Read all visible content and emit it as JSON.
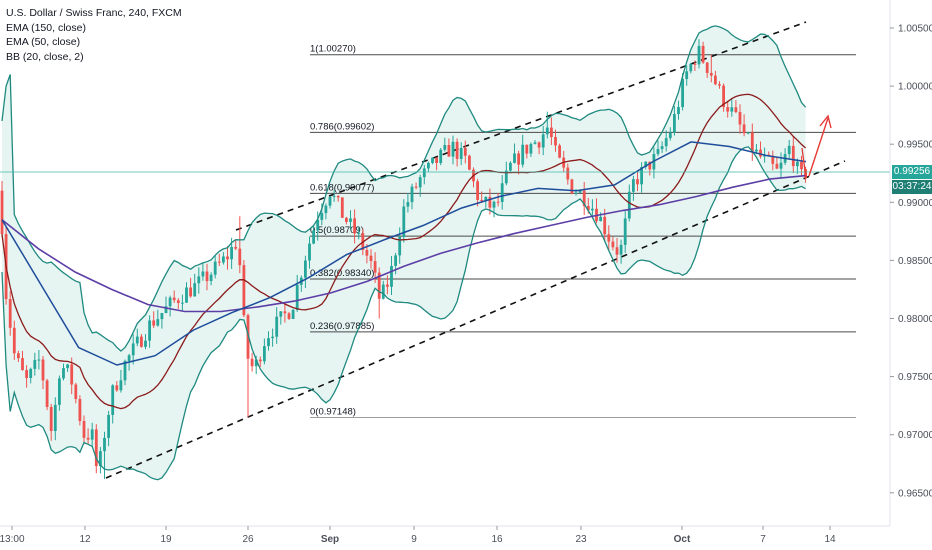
{
  "legend": {
    "symbol": "U.S. Dollar / Swiss Franc, 240, FXCM",
    "ema150": "EMA (150, close)",
    "ema50": "EMA (50, close)",
    "bb": "BB (20, close, 2)"
  },
  "price": {
    "last": "0.99256",
    "countdown": "03:37:24"
  },
  "colors": {
    "bull": "#26a69a",
    "bear": "#ef5350",
    "ema150": "#5b3ea6",
    "ema50": "#1e4d9b",
    "bb_band": "#1f8a80",
    "bb_basis": "#8b1c1c",
    "bb_fill": "#e6f4f2",
    "fib": "#555555",
    "price_line": "#3fb8a9",
    "arrow": "#e53935"
  },
  "chart_data": {
    "type": "candlestick",
    "symbol": "U.S. Dollar / Swiss Franc",
    "timeframe": "240",
    "x_ticks": [
      "13:00",
      "12",
      "19",
      "26",
      "Sep",
      "9",
      "16",
      "23",
      "Oct",
      "7",
      "14"
    ],
    "y_ticks": [
      "1.00500",
      "1.00000",
      "0.99500",
      "0.99000",
      "0.98500",
      "0.98000",
      "0.97500",
      "0.97000",
      "0.96500"
    ],
    "ylim": [
      0.9625,
      1.0075
    ],
    "fibonacci": [
      {
        "label": "1(1.00270)",
        "value": 1.0027
      },
      {
        "label": "0.786(0.99602)",
        "value": 0.99602
      },
      {
        "label": "0.618(0.99077)",
        "value": 0.99077
      },
      {
        "label": "0.5(0.98709)",
        "value": 0.98709
      },
      {
        "label": "0.382(0.98340)",
        "value": 0.9834
      },
      {
        "label": "0.236(0.97885)",
        "value": 0.97885
      },
      {
        "label": "0(0.97148)",
        "value": 0.97148
      }
    ],
    "series": [
      {
        "name": "EMA (150, close)",
        "values": [
          0.9885,
          0.986,
          0.984,
          0.9825,
          0.9812,
          0.9806,
          0.9806,
          0.981,
          0.9815,
          0.9822,
          0.9832,
          0.9845,
          0.9856,
          0.9865,
          0.9873,
          0.988,
          0.9887,
          0.9893,
          0.9898,
          0.9905,
          0.9913,
          0.992,
          0.9923
        ]
      },
      {
        "name": "EMA (50, close)",
        "values": [
          0.9885,
          0.983,
          0.9775,
          0.976,
          0.9768,
          0.979,
          0.9805,
          0.9818,
          0.9835,
          0.9855,
          0.9868,
          0.988,
          0.9895,
          0.9905,
          0.9912,
          0.991,
          0.9915,
          0.9935,
          0.9952,
          0.9948,
          0.994,
          0.9935
        ]
      }
    ]
  }
}
